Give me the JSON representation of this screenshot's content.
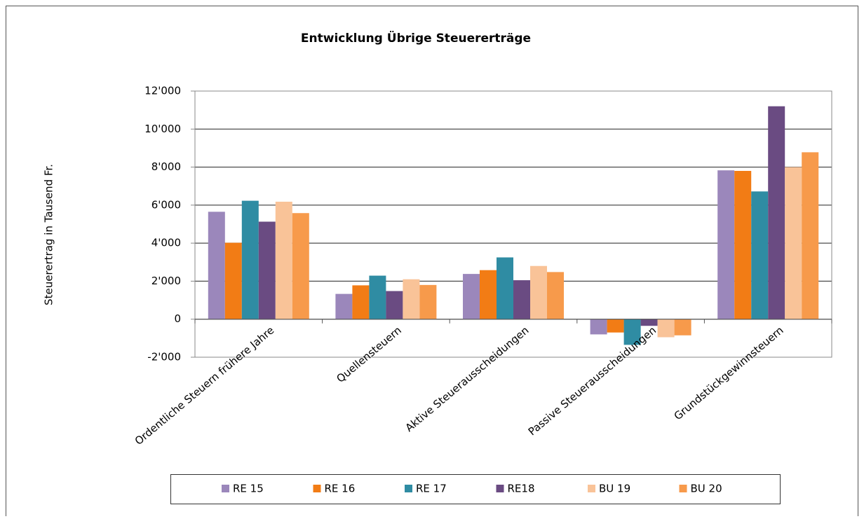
{
  "chart_data": {
    "type": "bar",
    "title": "Entwicklung Übrige Steuererträge",
    "ylabel": "Steuerertrag in Tausend Fr.",
    "categories": [
      "Ordentliche Steuern frühere Jahre",
      "Quellensteuern",
      "Aktive Steuerausscheidungen",
      "Passive Steuerausscheidungen",
      "Grundstückgewinnsteuern"
    ],
    "series": [
      {
        "name": "RE 15",
        "color": "#9b87bb",
        "values": [
          5650,
          1330,
          2380,
          -800,
          7830
        ]
      },
      {
        "name": "RE 16",
        "color": "#f27c15",
        "values": [
          4020,
          1780,
          2580,
          -700,
          7800
        ]
      },
      {
        "name": "RE 17",
        "color": "#2f8ca3",
        "values": [
          6230,
          2290,
          3250,
          -1350,
          6720
        ]
      },
      {
        "name": "RE18",
        "color": "#6a4b82",
        "values": [
          5130,
          1480,
          2050,
          -350,
          11200
        ]
      },
      {
        "name": "BU 19",
        "color": "#f9c398",
        "values": [
          6180,
          2100,
          2800,
          -950,
          8000
        ]
      },
      {
        "name": "BU 20",
        "color": "#f79a4b",
        "values": [
          5580,
          1800,
          2480,
          -850,
          8780
        ]
      }
    ],
    "ylim": [
      -2000,
      12000
    ],
    "yticks": [
      {
        "value": -2000,
        "label": "-2'000"
      },
      0,
      {
        "value": 2000,
        "label": "2'000"
      },
      {
        "value": 4000,
        "label": "4'000"
      },
      {
        "value": 6000,
        "label": "6'000"
      },
      {
        "value": 8000,
        "label": "8'000"
      },
      {
        "value": 10000,
        "label": "10'000"
      },
      {
        "value": 12000,
        "label": "12'000"
      }
    ],
    "grid": true,
    "legend": "bottom"
  }
}
